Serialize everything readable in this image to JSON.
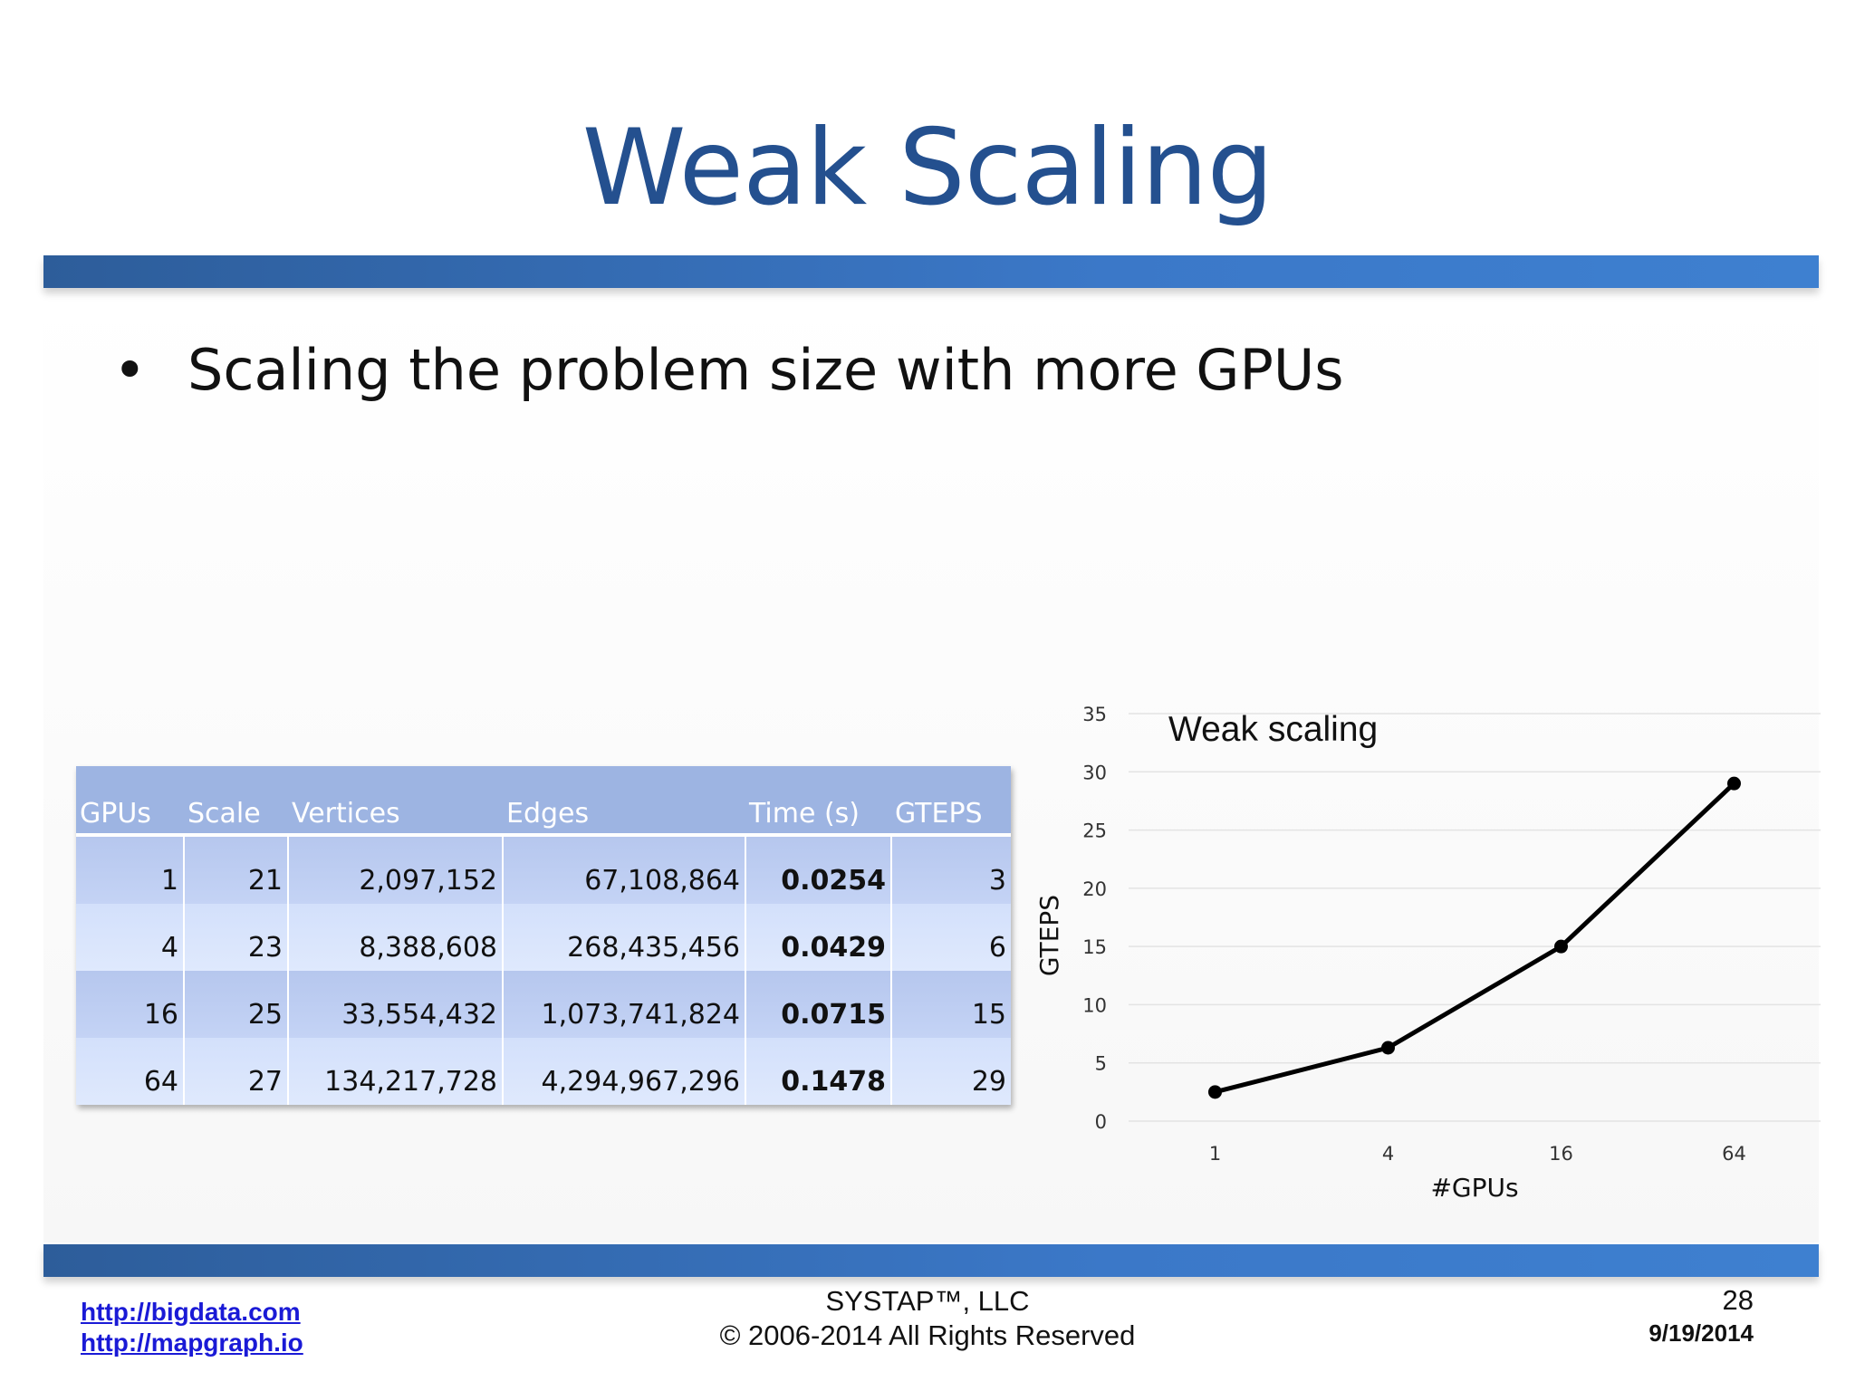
{
  "slide": {
    "title": "Weak Scaling",
    "bullet": "Scaling the problem size with more GPUs",
    "bullet_marker": "•"
  },
  "table": {
    "headers": [
      "GPUs",
      "Scale",
      "Vertices",
      "Edges",
      "Time (s)",
      "GTEPS"
    ],
    "rows": [
      [
        "1",
        "21",
        "2,097,152",
        "67,108,864",
        "0.0254",
        "3"
      ],
      [
        "4",
        "23",
        "8,388,608",
        "268,435,456",
        "0.0429",
        "6"
      ],
      [
        "16",
        "25",
        "33,554,432",
        "1,073,741,824",
        "0.0715",
        "15"
      ],
      [
        "64",
        "27",
        "134,217,728",
        "4,294,967,296",
        "0.1478",
        "29"
      ]
    ]
  },
  "chart_data": {
    "type": "line",
    "title": "Weak scaling",
    "xlabel": "#GPUs",
    "ylabel": "GTEPS",
    "categories": [
      "1",
      "4",
      "16",
      "64"
    ],
    "series": [
      {
        "values": [
          2.5,
          6.3,
          15,
          29
        ]
      }
    ],
    "ylim": [
      0,
      35
    ],
    "yticks": [
      0,
      5,
      10,
      15,
      20,
      25,
      30,
      35
    ],
    "grid": true,
    "legend": "none",
    "line_color": "#000000"
  },
  "footer": {
    "links": [
      "http://bigdata.com",
      "http://mapgraph.io"
    ],
    "company": "SYSTAP™, LLC",
    "copyright": "© 2006-2014 All Rights Reserved",
    "page_number": "28",
    "date": "9/19/2014"
  }
}
